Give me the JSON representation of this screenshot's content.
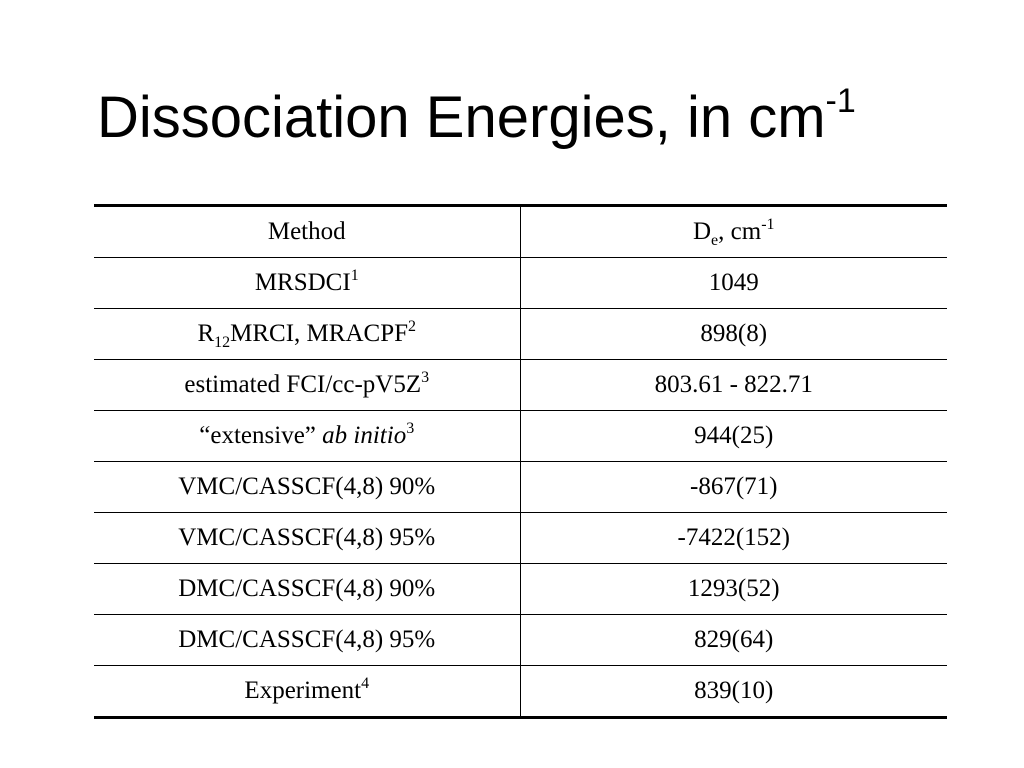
{
  "title": {
    "text": "Dissociation Energies, in cm",
    "exponent": "-1"
  },
  "table": {
    "header": {
      "method": "Method",
      "value_main": "D",
      "value_sub": "e",
      "value_rest": ", cm",
      "value_sup": "-1"
    },
    "rows": [
      {
        "method": {
          "pre_italic": "",
          "pre_sub": "",
          "main": "MRSDCI",
          "italic": "",
          "sup": "1"
        },
        "value": "1049"
      },
      {
        "method": {
          "pre_italic": "R",
          "pre_sub": "12",
          "main": "MRCI, MRACPF",
          "italic": "",
          "sup": "2"
        },
        "value": "898(8)"
      },
      {
        "method": {
          "pre_italic": "",
          "pre_sub": "",
          "main": "estimated FCI/cc-pV5Z",
          "italic": "",
          "sup": "3"
        },
        "value": "803.61 - 822.71"
      },
      {
        "method": {
          "pre_italic": "",
          "pre_sub": "",
          "main": "“extensive” ",
          "italic": "ab initio",
          "sup": "3"
        },
        "value": "944(25)"
      },
      {
        "method": {
          "pre_italic": "",
          "pre_sub": "",
          "main": "VMC/CASSCF(4,8) 90%",
          "italic": "",
          "sup": ""
        },
        "value": "-867(71)"
      },
      {
        "method": {
          "pre_italic": "",
          "pre_sub": "",
          "main": "VMC/CASSCF(4,8) 95%",
          "italic": "",
          "sup": ""
        },
        "value": "-7422(152)"
      },
      {
        "method": {
          "pre_italic": "",
          "pre_sub": "",
          "main": "DMC/CASSCF(4,8) 90%",
          "italic": "",
          "sup": ""
        },
        "value": "1293(52)"
      },
      {
        "method": {
          "pre_italic": "",
          "pre_sub": "",
          "main": "DMC/CASSCF(4,8) 95%",
          "italic": "",
          "sup": ""
        },
        "value": "829(64)"
      },
      {
        "method": {
          "pre_italic": "",
          "pre_sub": "",
          "main": "Experiment",
          "italic": "",
          "sup": "4"
        },
        "value": "839(10)"
      }
    ]
  }
}
